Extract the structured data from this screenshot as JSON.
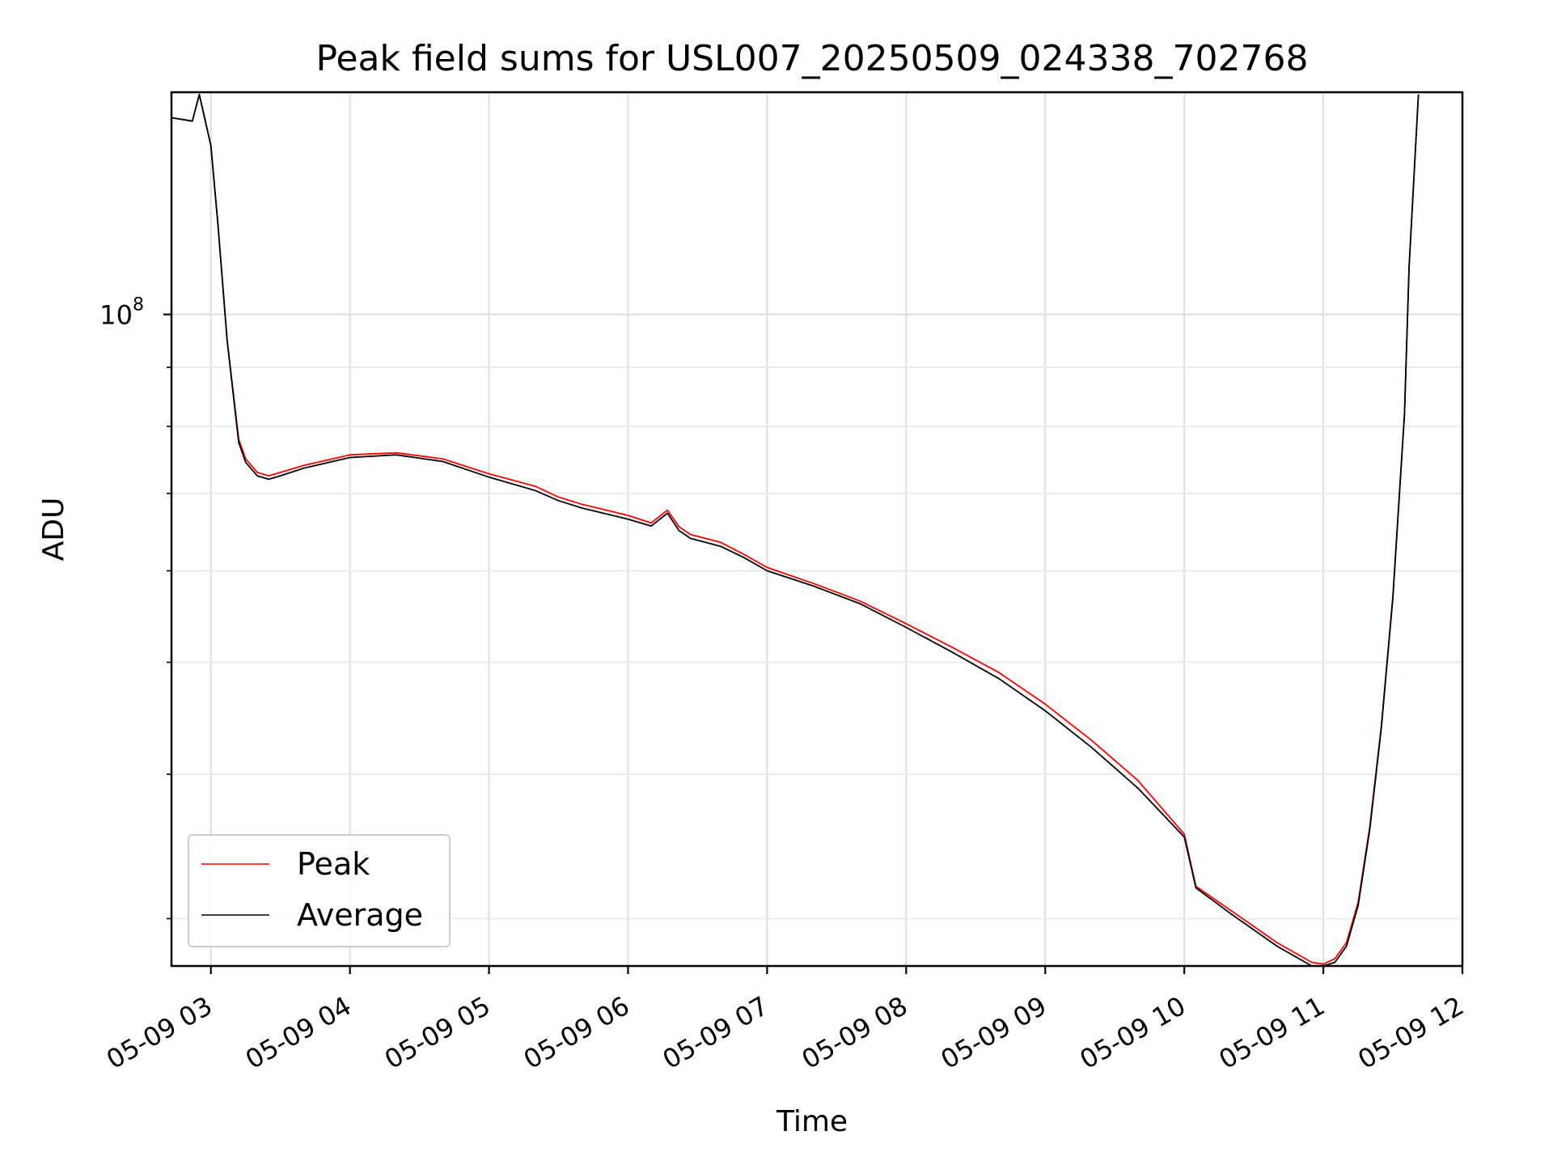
{
  "chart_data": {
    "type": "line",
    "title": "Peak field sums for USL007_20250509_024338_702768",
    "xlabel": "Time",
    "ylabel": "ADU",
    "x_axis": "datetime",
    "xlim": [
      "2025-05-09 02:43",
      "2025-05-09 12:00"
    ],
    "x_ticks": [
      "2025-05-09 03:00",
      "2025-05-09 04:00",
      "2025-05-09 05:00",
      "2025-05-09 06:00",
      "2025-05-09 07:00",
      "2025-05-09 08:00",
      "2025-05-09 09:00",
      "2025-05-09 10:00",
      "2025-05-09 11:00",
      "2025-05-09 12:00"
    ],
    "x_tick_labels": [
      "05-09 03",
      "05-09 04",
      "05-09 05",
      "05-09 06",
      "05-09 07",
      "05-09 08",
      "05-09 09",
      "05-09 10",
      "05-09 11",
      "05-09 12"
    ],
    "y_scale": "log",
    "ylim": [
      27300000,
      155700000
    ],
    "y_tick_label": {
      "base": "10",
      "exponent": "8",
      "value": 100000000
    },
    "grid": true,
    "legend": {
      "position": "lower-left"
    },
    "series": [
      {
        "name": "Peak",
        "color": "#ff0000",
        "x": [
          "2025-05-09 02:43",
          "2025-05-09 02:52",
          "2025-05-09 02:55",
          "2025-05-09 03:00",
          "2025-05-09 03:03",
          "2025-05-09 03:07",
          "2025-05-09 03:12",
          "2025-05-09 03:15",
          "2025-05-09 03:20",
          "2025-05-09 03:25",
          "2025-05-09 03:30",
          "2025-05-09 03:40",
          "2025-05-09 04:00",
          "2025-05-09 04:20",
          "2025-05-09 04:40",
          "2025-05-09 05:00",
          "2025-05-09 05:20",
          "2025-05-09 05:30",
          "2025-05-09 05:40",
          "2025-05-09 06:00",
          "2025-05-09 06:10",
          "2025-05-09 06:17",
          "2025-05-09 06:22",
          "2025-05-09 06:27",
          "2025-05-09 06:40",
          "2025-05-09 06:50",
          "2025-05-09 07:00",
          "2025-05-09 07:20",
          "2025-05-09 07:40",
          "2025-05-09 08:00",
          "2025-05-09 08:20",
          "2025-05-09 08:40",
          "2025-05-09 09:00",
          "2025-05-09 09:20",
          "2025-05-09 09:40",
          "2025-05-09 10:00",
          "2025-05-09 10:05",
          "2025-05-09 10:20",
          "2025-05-09 10:40",
          "2025-05-09 10:55",
          "2025-05-09 11:00",
          "2025-05-09 11:05",
          "2025-05-09 11:10",
          "2025-05-09 11:15",
          "2025-05-09 11:20",
          "2025-05-09 11:25",
          "2025-05-09 11:30",
          "2025-05-09 11:35",
          "2025-05-09 11:37",
          "2025-05-09 11:41"
        ],
        "y": [
          148000000,
          147000000,
          155000000,
          140000000,
          120000000,
          95000000,
          78000000,
          75000000,
          73000000,
          72500000,
          73000000,
          74000000,
          75600000,
          75900000,
          75000000,
          72800000,
          71000000,
          69500000,
          68500000,
          67000000,
          66000000,
          67700000,
          65500000,
          64500000,
          63500000,
          62000000,
          60400000,
          58500000,
          56500000,
          54000000,
          51500000,
          49000000,
          46000000,
          42800000,
          39500000,
          35500000,
          32000000,
          30500000,
          28600000,
          27500000,
          27400000,
          27700000,
          28600000,
          31000000,
          36000000,
          44000000,
          57000000,
          82000000,
          110000000,
          155000000
        ]
      },
      {
        "name": "Average",
        "color": "#000000",
        "x": [
          "2025-05-09 02:43",
          "2025-05-09 02:52",
          "2025-05-09 02:55",
          "2025-05-09 03:00",
          "2025-05-09 03:03",
          "2025-05-09 03:07",
          "2025-05-09 03:12",
          "2025-05-09 03:15",
          "2025-05-09 03:20",
          "2025-05-09 03:25",
          "2025-05-09 03:30",
          "2025-05-09 03:40",
          "2025-05-09 04:00",
          "2025-05-09 04:20",
          "2025-05-09 04:40",
          "2025-05-09 05:00",
          "2025-05-09 05:20",
          "2025-05-09 05:30",
          "2025-05-09 05:40",
          "2025-05-09 06:00",
          "2025-05-09 06:10",
          "2025-05-09 06:17",
          "2025-05-09 06:22",
          "2025-05-09 06:27",
          "2025-05-09 06:40",
          "2025-05-09 06:50",
          "2025-05-09 07:00",
          "2025-05-09 07:20",
          "2025-05-09 07:40",
          "2025-05-09 08:00",
          "2025-05-09 08:20",
          "2025-05-09 08:40",
          "2025-05-09 09:00",
          "2025-05-09 09:20",
          "2025-05-09 09:40",
          "2025-05-09 10:00",
          "2025-05-09 10:05",
          "2025-05-09 10:20",
          "2025-05-09 10:40",
          "2025-05-09 10:55",
          "2025-05-09 11:00",
          "2025-05-09 11:05",
          "2025-05-09 11:10",
          "2025-05-09 11:15",
          "2025-05-09 11:20",
          "2025-05-09 11:25",
          "2025-05-09 11:30",
          "2025-05-09 11:35",
          "2025-05-09 11:37",
          "2025-05-09 11:41"
        ],
        "y": [
          148000000,
          147000000,
          155000000,
          140000000,
          120000000,
          95000000,
          77500000,
          74500000,
          72500000,
          72000000,
          72500000,
          73600000,
          75200000,
          75600000,
          74600000,
          72300000,
          70400000,
          69000000,
          68000000,
          66500000,
          65600000,
          67300000,
          65000000,
          64000000,
          63000000,
          61600000,
          60000000,
          58200000,
          56200000,
          53600000,
          51000000,
          48400000,
          45400000,
          42200000,
          38900000,
          35300000,
          31900000,
          30300000,
          28400000,
          27300000,
          27300000,
          27500000,
          28400000,
          30800000,
          35800000,
          43800000,
          56800000,
          82000000,
          110000000,
          155000000
        ]
      }
    ]
  }
}
